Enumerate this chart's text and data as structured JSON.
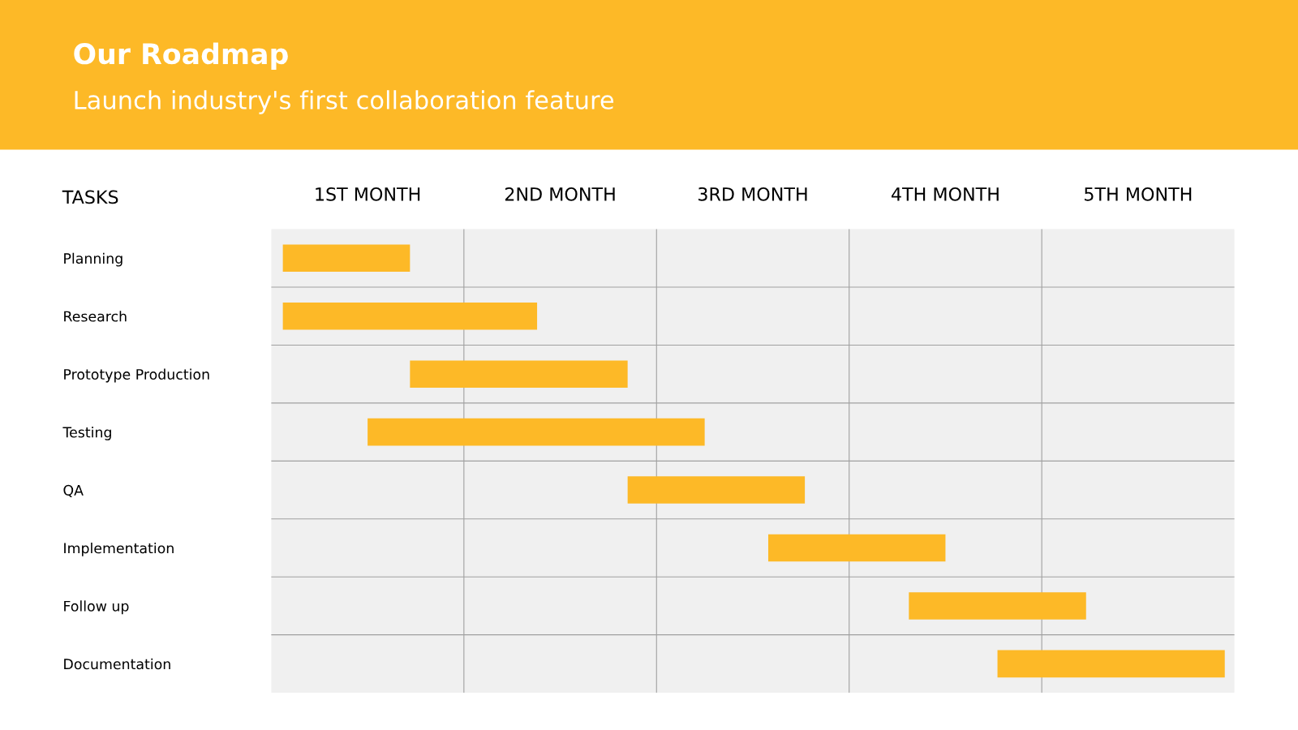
{
  "chart_data": {
    "type": "bar",
    "orientation": "horizontal",
    "title": "Our Roadmap",
    "subtitle": "Launch industry's first collaboration feature",
    "ylabel": "TASKS",
    "categories": [
      "Planning",
      "Research",
      "Prototype Production",
      "Testing",
      "QA",
      "Implementation",
      "Follow up",
      "Documentation"
    ],
    "base": [
      0.06,
      0.06,
      0.72,
      0.5,
      1.85,
      2.58,
      3.31,
      3.77
    ],
    "values": [
      0.66,
      1.32,
      1.13,
      1.75,
      0.92,
      0.92,
      0.92,
      1.18
    ],
    "color": "#fdb927",
    "xlim": [
      0,
      5
    ],
    "xticks": [
      {
        "value": 0.5,
        "label": "1ST MONTH"
      },
      {
        "value": 1.5,
        "label": "2ND MONTH"
      },
      {
        "value": 2.5,
        "label": "3RD MONTH"
      },
      {
        "value": 3.5,
        "label": "4TH MONTH"
      },
      {
        "value": 4.5,
        "label": "5TH MONTH"
      }
    ],
    "ref_lines": [
      {
        "axis": "x",
        "value": 1,
        "color": "#a0a0a0"
      },
      {
        "axis": "x",
        "value": 2,
        "color": "#a0a0a0"
      },
      {
        "axis": "x",
        "value": 3,
        "color": "#a0a0a0"
      },
      {
        "axis": "x",
        "value": 4,
        "color": "#a0a0a0"
      }
    ],
    "grid": true
  }
}
